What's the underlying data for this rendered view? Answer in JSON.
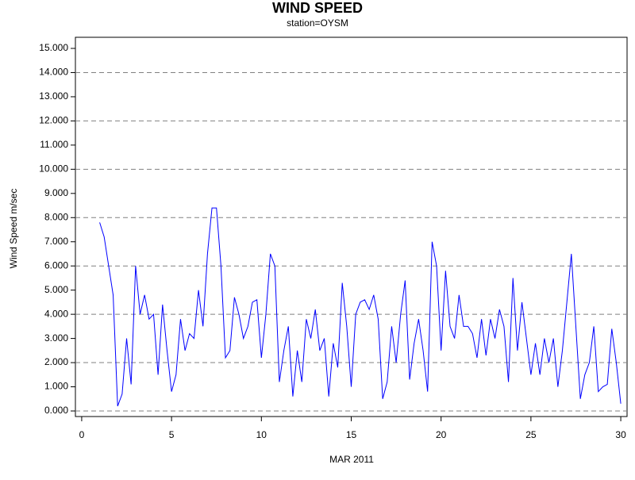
{
  "chart_data": {
    "type": "line",
    "title": "WIND SPEED",
    "subtitle": "station=OYSM",
    "x_label": "MAR 2011",
    "y_label": "Wind Speed m/sec",
    "xlim": [
      -0.35,
      30.35
    ],
    "xticks": [
      0,
      5,
      10,
      15,
      20,
      25,
      30
    ],
    "ylim": [
      -0.23,
      15.46
    ],
    "yticks": [
      {
        "value": 0,
        "label": "0.000"
      },
      {
        "value": 1,
        "label": "1.000"
      },
      {
        "value": 2,
        "label": "2.000"
      },
      {
        "value": 3,
        "label": "3.000"
      },
      {
        "value": 4,
        "label": "4.000"
      },
      {
        "value": 5,
        "label": "5.000"
      },
      {
        "value": 6,
        "label": "6.000"
      },
      {
        "value": 7,
        "label": "7.000"
      },
      {
        "value": 8,
        "label": "8.000"
      },
      {
        "value": 9,
        "label": "9.000"
      },
      {
        "value": 10,
        "label": "10.000"
      },
      {
        "value": 11,
        "label": "11.000"
      },
      {
        "value": 12,
        "label": "12.000"
      },
      {
        "value": 13,
        "label": "13.000"
      },
      {
        "value": 14,
        "label": "14.000"
      },
      {
        "value": 15,
        "label": "15.000"
      }
    ],
    "grid": true,
    "series": [
      {
        "color": "#0000ff",
        "x": [
          1,
          1.25,
          1.5,
          1.75,
          2,
          2.25,
          2.5,
          2.75,
          3,
          3.25,
          3.5,
          3.75,
          4,
          4.25,
          4.5,
          4.75,
          5,
          5.25,
          5.5,
          5.75,
          6,
          6.25,
          6.5,
          6.75,
          7,
          7.25,
          7.5,
          7.75,
          8,
          8.25,
          8.5,
          8.75,
          9,
          9.25,
          9.5,
          9.75,
          10,
          10.25,
          10.5,
          10.75,
          11,
          11.25,
          11.5,
          11.75,
          12,
          12.25,
          12.5,
          12.75,
          13,
          13.25,
          13.5,
          13.75,
          14,
          14.25,
          14.5,
          14.75,
          15,
          15.25,
          15.5,
          15.75,
          16,
          16.25,
          16.5,
          16.75,
          17,
          17.25,
          17.5,
          17.75,
          18,
          18.25,
          18.5,
          18.75,
          19,
          19.25,
          19.5,
          19.75,
          20,
          20.25,
          20.5,
          20.75,
          21,
          21.25,
          21.5,
          21.75,
          22,
          22.25,
          22.5,
          22.75,
          23,
          23.25,
          23.5,
          23.75,
          24,
          24.25,
          24.5,
          24.75,
          25,
          25.25,
          25.5,
          25.75,
          26,
          26.25,
          26.5,
          26.75,
          27,
          27.25,
          27.5,
          27.75,
          28,
          28.25,
          28.5,
          28.75,
          29,
          29.25,
          29.5,
          29.75,
          30
        ],
        "values": [
          7.8,
          7.2,
          6.0,
          4.8,
          0.2,
          0.7,
          3.0,
          1.1,
          6.0,
          4.0,
          4.8,
          3.8,
          4.0,
          1.5,
          4.4,
          2.5,
          0.8,
          1.5,
          3.8,
          2.5,
          3.2,
          3.0,
          5.0,
          3.5,
          6.5,
          8.4,
          8.4,
          6.0,
          2.2,
          2.5,
          4.7,
          4.0,
          3.0,
          3.5,
          4.5,
          4.6,
          2.2,
          4.0,
          6.5,
          6.0,
          1.2,
          2.5,
          3.5,
          0.6,
          2.5,
          1.2,
          3.8,
          3.0,
          4.2,
          2.5,
          3.0,
          0.6,
          2.8,
          1.8,
          5.3,
          3.5,
          1.0,
          4.0,
          4.5,
          4.6,
          4.2,
          4.8,
          3.8,
          0.5,
          1.2,
          3.5,
          2.0,
          4.0,
          5.4,
          1.3,
          2.8,
          3.8,
          2.5,
          0.8,
          7.0,
          6.0,
          2.5,
          5.8,
          3.5,
          3.0,
          4.8,
          3.5,
          3.5,
          3.2,
          2.2,
          3.8,
          2.3,
          3.8,
          3.0,
          4.2,
          3.5,
          1.2,
          5.5,
          2.5,
          4.5,
          3.0,
          1.5,
          2.8,
          1.5,
          3.0,
          2.0,
          3.0,
          1.0,
          2.5,
          4.5,
          6.5,
          3.5,
          0.5,
          1.5,
          2.0,
          3.5,
          0.8,
          1.0,
          1.1,
          3.4,
          2.0,
          0.3
        ]
      }
    ]
  }
}
